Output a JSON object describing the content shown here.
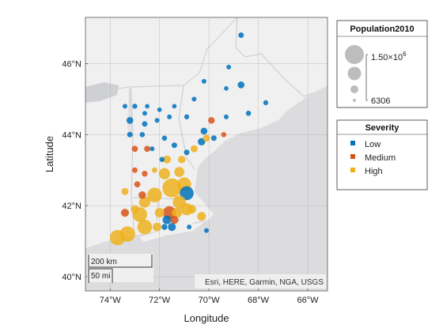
{
  "axes": {
    "xlabel": "Longitude",
    "ylabel": "Latitude",
    "lon_range": [
      -75,
      -65.2
    ],
    "lat_range": [
      39.6,
      47.3
    ],
    "lon_ticks": [
      {
        "v": -74,
        "label": "74°W"
      },
      {
        "v": -72,
        "label": "72°W"
      },
      {
        "v": -70,
        "label": "70°W"
      },
      {
        "v": -68,
        "label": "68°W"
      },
      {
        "v": -66,
        "label": "66°W"
      }
    ],
    "lat_ticks": [
      {
        "v": 40,
        "label": "40°N"
      },
      {
        "v": 42,
        "label": "42°N"
      },
      {
        "v": 44,
        "label": "44°N"
      },
      {
        "v": 46,
        "label": "46°N"
      }
    ],
    "grid": true
  },
  "scalebar": {
    "km_label": "200 km",
    "mi_label": "50 mi"
  },
  "attribution": "Esri, HERE, Garmin, NGA, USGS",
  "size_legend": {
    "title": "Population2010",
    "max_label": "1.50×10",
    "max_exp": "6",
    "min_label": "6306"
  },
  "color_legend": {
    "title": "Severity",
    "items": [
      {
        "label": "Low",
        "color": "#0072BD"
      },
      {
        "label": "Medium",
        "color": "#D95319"
      },
      {
        "label": "High",
        "color": "#EDB120"
      }
    ]
  },
  "map_colors": {
    "water": "#dcdcde",
    "land": "#f0f0f0",
    "lake": "#cfd0d4"
  },
  "chart_data": {
    "type": "scatter",
    "xlabel": "Longitude",
    "ylabel": "Latitude",
    "size_variable": "Population2010",
    "color_variable": "Severity",
    "points": [
      {
        "lon": -68.7,
        "lat": 46.8,
        "size": 40000,
        "sev": "Low"
      },
      {
        "lon": -69.2,
        "lat": 45.9,
        "size": 20000,
        "sev": "Low"
      },
      {
        "lon": -68.7,
        "lat": 45.4,
        "size": 90000,
        "sev": "Low"
      },
      {
        "lon": -70.2,
        "lat": 45.5,
        "size": 20000,
        "sev": "Low"
      },
      {
        "lon": -69.3,
        "lat": 45.3,
        "size": 15000,
        "sev": "Low"
      },
      {
        "lon": -70.6,
        "lat": 45.0,
        "size": 20000,
        "sev": "Low"
      },
      {
        "lon": -67.7,
        "lat": 44.9,
        "size": 25000,
        "sev": "Low"
      },
      {
        "lon": -68.4,
        "lat": 44.6,
        "size": 30000,
        "sev": "Low"
      },
      {
        "lon": -69.3,
        "lat": 44.5,
        "size": 20000,
        "sev": "Low"
      },
      {
        "lon": -69.9,
        "lat": 44.4,
        "size": 80000,
        "sev": "Medium"
      },
      {
        "lon": -70.9,
        "lat": 44.5,
        "size": 25000,
        "sev": "Low"
      },
      {
        "lon": -71.6,
        "lat": 44.5,
        "size": 20000,
        "sev": "Low"
      },
      {
        "lon": -73.4,
        "lat": 44.8,
        "size": 20000,
        "sev": "Low"
      },
      {
        "lon": -73.0,
        "lat": 44.8,
        "size": 25000,
        "sev": "Low"
      },
      {
        "lon": -72.5,
        "lat": 44.8,
        "size": 15000,
        "sev": "Low"
      },
      {
        "lon": -72.0,
        "lat": 44.7,
        "size": 15000,
        "sev": "Low"
      },
      {
        "lon": -71.4,
        "lat": 44.8,
        "size": 15000,
        "sev": "Low"
      },
      {
        "lon": -73.2,
        "lat": 44.4,
        "size": 90000,
        "sev": "Low"
      },
      {
        "lon": -72.6,
        "lat": 44.6,
        "size": 20000,
        "sev": "Low"
      },
      {
        "lon": -72.1,
        "lat": 44.4,
        "size": 20000,
        "sev": "Low"
      },
      {
        "lon": -72.6,
        "lat": 44.3,
        "size": 40000,
        "sev": "Low"
      },
      {
        "lon": -70.2,
        "lat": 44.1,
        "size": 90000,
        "sev": "Low"
      },
      {
        "lon": -69.4,
        "lat": 44.0,
        "size": 30000,
        "sev": "Medium"
      },
      {
        "lon": -69.8,
        "lat": 43.9,
        "size": 40000,
        "sev": "Low"
      },
      {
        "lon": -70.3,
        "lat": 43.8,
        "size": 120000,
        "sev": "Low"
      },
      {
        "lon": -70.1,
        "lat": 43.9,
        "size": 100000,
        "sev": "High"
      },
      {
        "lon": -72.3,
        "lat": 43.6,
        "size": 20000,
        "sev": "Low"
      },
      {
        "lon": -71.8,
        "lat": 43.9,
        "size": 30000,
        "sev": "Low"
      },
      {
        "lon": -71.4,
        "lat": 43.7,
        "size": 40000,
        "sev": "Low"
      },
      {
        "lon": -70.6,
        "lat": 43.6,
        "size": 100000,
        "sev": "High"
      },
      {
        "lon": -73.2,
        "lat": 44.0,
        "size": 40000,
        "sev": "Low"
      },
      {
        "lon": -72.7,
        "lat": 44.0,
        "size": 30000,
        "sev": "Low"
      },
      {
        "lon": -73.0,
        "lat": 43.6,
        "size": 60000,
        "sev": "Medium"
      },
      {
        "lon": -72.5,
        "lat": 43.6,
        "size": 60000,
        "sev": "Medium"
      },
      {
        "lon": -71.1,
        "lat": 43.3,
        "size": 120000,
        "sev": "High"
      },
      {
        "lon": -71.7,
        "lat": 43.3,
        "size": 150000,
        "sev": "High"
      },
      {
        "lon": -72.2,
        "lat": 43.0,
        "size": 40000,
        "sev": "High"
      },
      {
        "lon": -71.9,
        "lat": 43.3,
        "size": 30000,
        "sev": "Low"
      },
      {
        "lon": -70.9,
        "lat": 43.5,
        "size": 40000,
        "sev": "Low"
      },
      {
        "lon": -73.0,
        "lat": 43.0,
        "size": 40000,
        "sev": "Medium"
      },
      {
        "lon": -72.6,
        "lat": 42.9,
        "size": 50000,
        "sev": "Medium"
      },
      {
        "lon": -71.8,
        "lat": 42.9,
        "size": 400000,
        "sev": "High"
      },
      {
        "lon": -71.2,
        "lat": 42.95,
        "size": 300000,
        "sev": "High"
      },
      {
        "lon": -72.9,
        "lat": 42.6,
        "size": 60000,
        "sev": "Medium"
      },
      {
        "lon": -73.4,
        "lat": 42.4,
        "size": 100000,
        "sev": "High"
      },
      {
        "lon": -72.7,
        "lat": 42.3,
        "size": 120000,
        "sev": "Medium"
      },
      {
        "lon": -72.2,
        "lat": 42.3,
        "size": 800000,
        "sev": "High"
      },
      {
        "lon": -71.5,
        "lat": 42.5,
        "size": 1500000,
        "sev": "High"
      },
      {
        "lon": -71.0,
        "lat": 42.6,
        "size": 700000,
        "sev": "High"
      },
      {
        "lon": -70.9,
        "lat": 42.35,
        "size": 700000,
        "sev": "Low"
      },
      {
        "lon": -71.2,
        "lat": 42.1,
        "size": 600000,
        "sev": "High"
      },
      {
        "lon": -72.6,
        "lat": 42.1,
        "size": 400000,
        "sev": "High"
      },
      {
        "lon": -73.0,
        "lat": 41.9,
        "size": 150000,
        "sev": "High"
      },
      {
        "lon": -73.4,
        "lat": 41.8,
        "size": 150000,
        "sev": "Medium"
      },
      {
        "lon": -72.8,
        "lat": 41.75,
        "size": 800000,
        "sev": "High"
      },
      {
        "lon": -72.0,
        "lat": 41.8,
        "size": 250000,
        "sev": "High"
      },
      {
        "lon": -71.6,
        "lat": 41.8,
        "size": 600000,
        "sev": "Medium"
      },
      {
        "lon": -71.3,
        "lat": 41.8,
        "size": 300000,
        "sev": "High"
      },
      {
        "lon": -70.9,
        "lat": 41.9,
        "size": 500000,
        "sev": "High"
      },
      {
        "lon": -70.7,
        "lat": 41.9,
        "size": 200000,
        "sev": "High"
      },
      {
        "lon": -70.3,
        "lat": 41.7,
        "size": 200000,
        "sev": "High"
      },
      {
        "lon": -71.7,
        "lat": 41.6,
        "size": 200000,
        "sev": "Low"
      },
      {
        "lon": -71.4,
        "lat": 41.6,
        "size": 150000,
        "sev": "Medium"
      },
      {
        "lon": -71.5,
        "lat": 41.4,
        "size": 150000,
        "sev": "Low"
      },
      {
        "lon": -72.6,
        "lat": 41.4,
        "size": 800000,
        "sev": "High"
      },
      {
        "lon": -73.3,
        "lat": 41.2,
        "size": 900000,
        "sev": "High"
      },
      {
        "lon": -72.1,
        "lat": 41.4,
        "size": 200000,
        "sev": "High"
      },
      {
        "lon": -73.7,
        "lat": 41.1,
        "size": 900000,
        "sev": "High"
      },
      {
        "lon": -71.8,
        "lat": 41.4,
        "size": 50000,
        "sev": "Low"
      },
      {
        "lon": -70.8,
        "lat": 41.4,
        "size": 20000,
        "sev": "Low"
      },
      {
        "lon": -70.1,
        "lat": 41.3,
        "size": 20000,
        "sev": "Low"
      }
    ]
  }
}
